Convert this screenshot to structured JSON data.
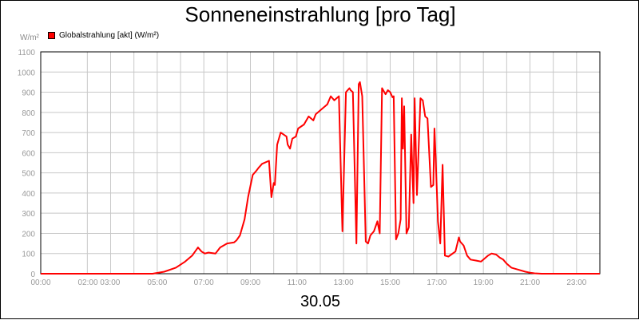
{
  "chart_data": {
    "type": "line",
    "title": "Sonneneinstrahlung [pro Tag]",
    "ylabel": "W/m²",
    "xlabel": "30.05",
    "ylim": [
      0,
      1100
    ],
    "y_ticks": [
      "0",
      "100",
      "200",
      "300",
      "400",
      "500",
      "600",
      "700",
      "800",
      "900",
      "1000",
      "1100"
    ],
    "x_ticks": [
      {
        "label": "00:00",
        "hour": 0
      },
      {
        "label": "02:00 03:00",
        "hour": 2.5
      },
      {
        "label": "05:00",
        "hour": 5
      },
      {
        "label": "07:00",
        "hour": 7
      },
      {
        "label": "09:00",
        "hour": 9
      },
      {
        "label": "11:00",
        "hour": 11
      },
      {
        "label": "13:00",
        "hour": 13
      },
      {
        "label": "15:00",
        "hour": 15
      },
      {
        "label": "17:00",
        "hour": 17
      },
      {
        "label": "19:00",
        "hour": 19
      },
      {
        "label": "21:00",
        "hour": 21
      },
      {
        "label": "23:00",
        "hour": 23
      }
    ],
    "grid": true,
    "legend_position": "top-left",
    "series": [
      {
        "name": "Globalstrahlung [akt] (W/m²)",
        "color": "#ff0000",
        "x": [
          0,
          4.8,
          5.3,
          5.8,
          6.2,
          6.5,
          6.75,
          6.9,
          7.05,
          7.2,
          7.5,
          7.7,
          8.0,
          8.3,
          8.4,
          8.55,
          8.75,
          8.9,
          9.1,
          9.25,
          9.35,
          9.5,
          9.8,
          9.9,
          10.0,
          10.05,
          10.15,
          10.3,
          10.55,
          10.6,
          10.7,
          10.8,
          10.95,
          11.05,
          11.3,
          11.5,
          11.7,
          11.8,
          11.9,
          12.1,
          12.3,
          12.45,
          12.6,
          12.7,
          12.8,
          12.95,
          13.1,
          13.25,
          13.3,
          13.4,
          13.55,
          13.65,
          13.7,
          13.8,
          13.95,
          14.05,
          14.15,
          14.3,
          14.45,
          14.55,
          14.65,
          14.8,
          14.9,
          15.0,
          15.1,
          15.15,
          15.25,
          15.35,
          15.45,
          15.5,
          15.55,
          15.6,
          15.7,
          15.8,
          15.9,
          16.0,
          16.05,
          16.15,
          16.3,
          16.4,
          16.5,
          16.6,
          16.75,
          16.85,
          16.9,
          16.95,
          17.05,
          17.15,
          17.25,
          17.35,
          17.5,
          17.8,
          17.95,
          18.0,
          18.15,
          18.3,
          18.45,
          18.7,
          18.9,
          19.0,
          19.1,
          19.2,
          19.35,
          19.55,
          19.7,
          19.85,
          20.0,
          20.2,
          20.5,
          20.8,
          21.0,
          21.2,
          21.5,
          22.0,
          23.0,
          24.0
        ],
        "y": [
          0,
          0,
          10,
          30,
          60,
          90,
          130,
          110,
          100,
          105,
          100,
          130,
          150,
          155,
          165,
          190,
          270,
          380,
          490,
          510,
          525,
          545,
          560,
          380,
          450,
          440,
          640,
          700,
          680,
          640,
          620,
          670,
          680,
          720,
          740,
          780,
          760,
          790,
          800,
          820,
          840,
          880,
          860,
          870,
          880,
          210,
          900,
          920,
          910,
          900,
          150,
          940,
          950,
          880,
          160,
          150,
          190,
          210,
          260,
          200,
          920,
          890,
          910,
          900,
          875,
          880,
          170,
          200,
          270,
          870,
          620,
          830,
          200,
          230,
          690,
          350,
          870,
          390,
          870,
          860,
          780,
          770,
          430,
          440,
          720,
          580,
          260,
          150,
          540,
          90,
          85,
          110,
          180,
          160,
          140,
          90,
          70,
          65,
          60,
          70,
          80,
          90,
          100,
          95,
          80,
          70,
          50,
          30,
          20,
          10,
          5,
          2,
          0,
          0,
          0,
          0
        ]
      }
    ]
  }
}
